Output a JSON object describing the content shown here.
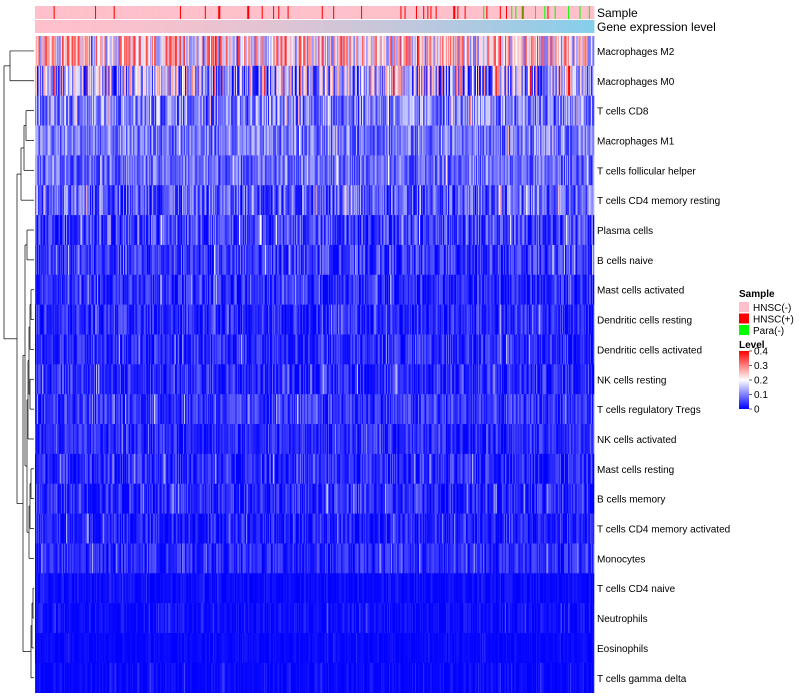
{
  "chart_data": {
    "type": "heatmap",
    "title": "",
    "annotations": {
      "sample_label": "Sample",
      "expression_label": "Gene expression level"
    },
    "rows": [
      {
        "name": "Macrophages M2",
        "mean": 0.22,
        "spread": 0.14
      },
      {
        "name": "Macrophages M0",
        "mean": 0.14,
        "spread": 0.16
      },
      {
        "name": "T cells CD8",
        "mean": 0.1,
        "spread": 0.09
      },
      {
        "name": "Macrophages M1",
        "mean": 0.09,
        "spread": 0.07
      },
      {
        "name": "T cells follicular helper",
        "mean": 0.08,
        "spread": 0.06
      },
      {
        "name": "T cells CD4 memory resting",
        "mean": 0.07,
        "spread": 0.08
      },
      {
        "name": "Plasma cells",
        "mean": 0.05,
        "spread": 0.07
      },
      {
        "name": "B cells naive",
        "mean": 0.04,
        "spread": 0.06
      },
      {
        "name": "Mast cells activated",
        "mean": 0.03,
        "spread": 0.05
      },
      {
        "name": "Dendritic cells resting",
        "mean": 0.03,
        "spread": 0.05
      },
      {
        "name": "Dendritic cells activated",
        "mean": 0.03,
        "spread": 0.05
      },
      {
        "name": "NK cells resting",
        "mean": 0.03,
        "spread": 0.05
      },
      {
        "name": "T cells regulatory  Tregs",
        "mean": 0.04,
        "spread": 0.05
      },
      {
        "name": "NK cells activated",
        "mean": 0.03,
        "spread": 0.04
      },
      {
        "name": "Mast cells resting",
        "mean": 0.03,
        "spread": 0.05
      },
      {
        "name": "B cells memory",
        "mean": 0.03,
        "spread": 0.05
      },
      {
        "name": "T cells CD4 memory activated",
        "mean": 0.02,
        "spread": 0.05
      },
      {
        "name": "Monocytes",
        "mean": 0.03,
        "spread": 0.04
      },
      {
        "name": "T cells CD4 naive",
        "mean": 0.005,
        "spread": 0.02
      },
      {
        "name": "Neutrophils",
        "mean": 0.008,
        "spread": 0.025
      },
      {
        "name": "Eosinophils",
        "mean": 0.003,
        "spread": 0.015
      },
      {
        "name": "T cells gamma delta",
        "mean": 0.004,
        "spread": 0.02
      }
    ],
    "sample_groups": [
      {
        "name": "HNSC(-)",
        "color": "#FFC0CB"
      },
      {
        "name": "HNSC(+)",
        "color": "#FF0000"
      },
      {
        "name": "Para(-)",
        "color": "#00FF00"
      }
    ],
    "legend": {
      "sample_title": "Sample",
      "level_title": "Level",
      "level_ticks": [
        "0.4",
        "0.3",
        "0.2",
        "0.1",
        "0"
      ],
      "level_values": [
        0.4,
        0.3,
        0.2,
        0.1,
        0
      ],
      "color_low": "#0000FF",
      "color_mid": "#FFFFFF",
      "color_high": "#FF0000",
      "placement": "right"
    },
    "expression_bar_colors": [
      "#FFC0CB",
      "#87CEEB"
    ],
    "n_samples": 540,
    "value_range": [
      0,
      0.4
    ]
  }
}
